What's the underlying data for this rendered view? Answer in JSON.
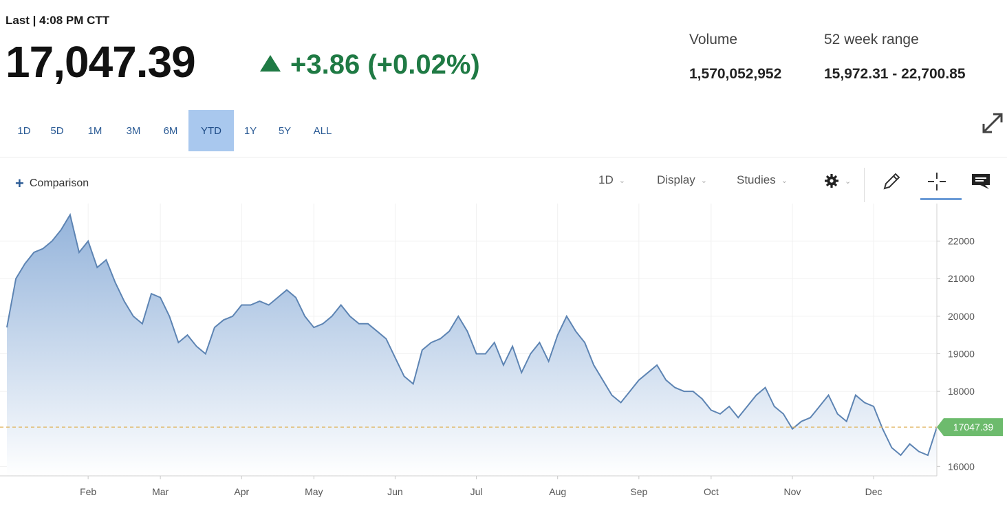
{
  "header": {
    "last_label": "Last | 4:08 PM CTT",
    "price": "17,047.39",
    "change": "+3.86 (+0.02%)",
    "volume_label": "Volume",
    "volume_value": "1,570,052,952",
    "range_label": "52 week range",
    "range_value": "15,972.31 - 22,700.85"
  },
  "ranges": [
    {
      "label": "1D",
      "active": false
    },
    {
      "label": "5D",
      "active": false
    },
    {
      "label": "1M",
      "active": false
    },
    {
      "label": "3M",
      "active": false
    },
    {
      "label": "6M",
      "active": false
    },
    {
      "label": "YTD",
      "active": true
    },
    {
      "label": "1Y",
      "active": false
    },
    {
      "label": "5Y",
      "active": false
    },
    {
      "label": "ALL",
      "active": false
    }
  ],
  "toolbar": {
    "comparison_label": "Comparison",
    "interval_label": "1D",
    "display_label": "Display",
    "studies_label": "Studies"
  },
  "icons": {
    "expand": "expand-icon",
    "settings": "gear-icon",
    "draw": "pencil-icon",
    "crosshair": "crosshair-icon",
    "comment": "comment-icon"
  },
  "colors": {
    "line": "#5d84b3",
    "fill_top": "#8fb0d9",
    "positive": "#1f7a44",
    "last_badge": "#6dbb6d"
  },
  "chart_data": {
    "type": "area",
    "x": [
      "Jan 2",
      "Jan 5",
      "Jan 9",
      "Jan 12",
      "Jan 16",
      "Jan 19",
      "Jan 23",
      "Jan 26",
      "Jan 30",
      "Feb 2",
      "Feb 6",
      "Feb 9",
      "Feb 13",
      "Feb 16",
      "Feb 20",
      "Feb 23",
      "Feb 27",
      "Mar 2",
      "Mar 6",
      "Mar 9",
      "Mar 13",
      "Mar 16",
      "Mar 20",
      "Mar 23",
      "Mar 27",
      "Mar 30",
      "Apr 3",
      "Apr 6",
      "Apr 10",
      "Apr 13",
      "Apr 17",
      "Apr 20",
      "Apr 24",
      "Apr 27",
      "May 1",
      "May 4",
      "May 8",
      "May 11",
      "May 15",
      "May 18",
      "May 22",
      "May 25",
      "May 29",
      "Jun 1",
      "Jun 5",
      "Jun 8",
      "Jun 12",
      "Jun 15",
      "Jun 19",
      "Jun 22",
      "Jun 26",
      "Jun 29",
      "Jul 3",
      "Jul 6",
      "Jul 10",
      "Jul 13",
      "Jul 17",
      "Jul 20",
      "Jul 24",
      "Jul 27",
      "Jul 31",
      "Aug 3",
      "Aug 7",
      "Aug 10",
      "Aug 14",
      "Aug 17",
      "Aug 21",
      "Aug 24",
      "Aug 28",
      "Aug 31",
      "Sep 4",
      "Sep 7",
      "Sep 11",
      "Sep 14",
      "Sep 18",
      "Sep 21",
      "Sep 25",
      "Sep 28",
      "Oct 2",
      "Oct 5",
      "Oct 9",
      "Oct 12",
      "Oct 16",
      "Oct 19",
      "Oct 23",
      "Oct 26",
      "Oct 30",
      "Nov 2",
      "Nov 6",
      "Nov 9",
      "Nov 13",
      "Nov 16",
      "Nov 20",
      "Nov 23",
      "Nov 27",
      "Nov 30",
      "Dec 4",
      "Dec 7",
      "Dec 11",
      "Dec 14",
      "Dec 18",
      "Dec 21",
      "Dec 27",
      "Dec 29"
    ],
    "series": [
      {
        "values": [
          19700,
          21000,
          21400,
          21700,
          21800,
          22000,
          22300,
          22700,
          21700,
          22000,
          21300,
          21500,
          20900,
          20400,
          20000,
          19800,
          20600,
          20500,
          20000,
          19300,
          19500,
          19200,
          19000,
          19700,
          19900,
          20000,
          20300,
          20300,
          20400,
          20300,
          20500,
          20700,
          20500,
          20000,
          19700,
          19800,
          20000,
          20300,
          20000,
          19800,
          19800,
          19600,
          19400,
          18900,
          18400,
          18200,
          19100,
          19300,
          19400,
          19600,
          20000,
          19600,
          19000,
          19000,
          19300,
          18700,
          19200,
          18500,
          19000,
          19300,
          18800,
          19500,
          20000,
          19600,
          19300,
          18700,
          18300,
          17900,
          17700,
          18000,
          18300,
          18500,
          18700,
          18300,
          18100,
          18000,
          18000,
          17800,
          17500,
          17400,
          17600,
          17300,
          17600,
          17900,
          18100,
          17600,
          17400,
          17000,
          17200,
          17300,
          17600,
          17900,
          17400,
          17200,
          17900,
          17700,
          17600,
          17000,
          16500,
          16300,
          16600,
          16400,
          16300,
          17047.39
        ]
      }
    ],
    "last_value": "17047.39",
    "xticks": [
      "Feb",
      "Mar",
      "Apr",
      "May",
      "Jun",
      "Jul",
      "Aug",
      "Sep",
      "Oct",
      "Nov",
      "Dec"
    ],
    "yticks": [
      "22000",
      "21000",
      "20000",
      "19000",
      "18000",
      "16000"
    ],
    "ylim": [
      15750,
      23000
    ],
    "grid": true
  }
}
